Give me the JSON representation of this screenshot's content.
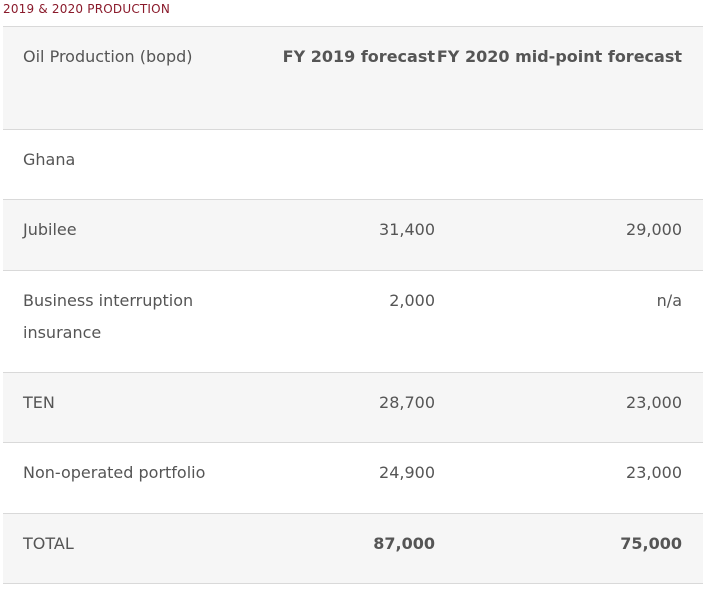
{
  "caption": "2019 & 2020 PRODUCTION",
  "table": {
    "headers": [
      "Oil Production (bopd)",
      "FY 2019 forecast",
      "FY 2020 mid-point forecast"
    ],
    "rows": [
      [
        "Ghana",
        "",
        ""
      ],
      [
        "Jubilee",
        "31,400",
        "29,000"
      ],
      [
        "Business interruption insurance",
        "2,000",
        "n/a"
      ],
      [
        "TEN",
        "28,700",
        "23,000"
      ],
      [
        "Non-operated portfolio",
        "24,900",
        "23,000"
      ],
      [
        "TOTAL",
        "87,000",
        "75,000"
      ]
    ]
  }
}
